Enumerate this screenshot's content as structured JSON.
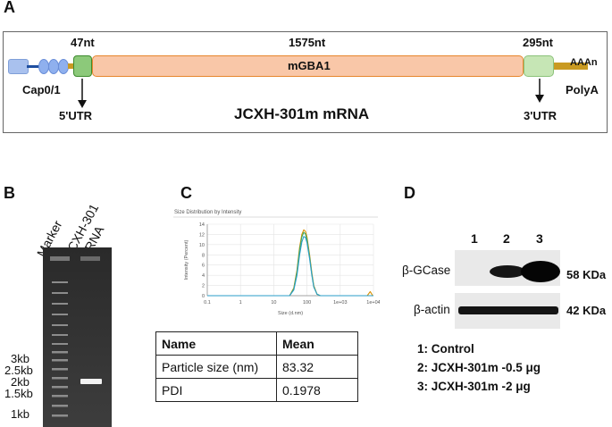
{
  "panelA": {
    "letter": "A",
    "label_47": "47nt",
    "label_1575": "1575nt",
    "label_295": "295nt",
    "gene": "mGBA1",
    "polyA_tail": "AAAn",
    "cap": "Cap0/1",
    "utr5": "5'UTR",
    "utr3": "3'UTR",
    "polyA": "PolyA",
    "mrna_title": "JCXH-301m mRNA"
  },
  "panelB": {
    "letter": "B",
    "lane_marker": "Marker",
    "lane_sample_1": "JCXH-301",
    "lane_sample_2": "mRNA",
    "sizes": [
      "3kb",
      "2.5kb",
      "2kb",
      "1.5kb",
      "1kb"
    ]
  },
  "panelC": {
    "letter": "C",
    "chart_title": "Size Distribution by Intensity",
    "ylabel": "Intensity (Percent)",
    "xlabel": "Size (d.nm)",
    "table": {
      "headers": [
        "Name",
        "Mean"
      ],
      "rows": [
        [
          "Particle size (nm)",
          "83.32"
        ],
        [
          "PDI",
          "0.1978"
        ]
      ]
    }
  },
  "chart_data": {
    "type": "line",
    "title": "Size Distribution by Intensity",
    "xlabel": "Size (d.nm)",
    "ylabel": "Intensity (Percent)",
    "x_scale": "log",
    "xlim": [
      0.1,
      10000
    ],
    "ylim": [
      0,
      14
    ],
    "x_tick_labels": [
      "0.1",
      "1",
      "10",
      "100",
      "1e+03",
      "1e+04"
    ],
    "y_tick_labels": [
      "0",
      "2",
      "4",
      "6",
      "8",
      "10",
      "12",
      "14"
    ],
    "grid": true,
    "series": [
      {
        "color": "#d99000",
        "x": [
          30,
          40,
          50,
          60,
          70,
          80,
          90,
          100,
          120,
          140,
          160,
          200,
          250,
          6500,
          8000,
          9500
        ],
        "y": [
          0,
          1.5,
          5,
          9.5,
          12,
          12.9,
          12.6,
          11.5,
          8,
          4.5,
          2,
          0.3,
          0,
          0,
          0.8,
          0
        ]
      },
      {
        "color": "#3aa860",
        "x": [
          30,
          40,
          50,
          60,
          70,
          80,
          90,
          100,
          120,
          140,
          160,
          200,
          250
        ],
        "y": [
          0,
          1.3,
          4.6,
          9,
          11.5,
          12.4,
          12.1,
          11,
          7.6,
          4.2,
          1.8,
          0.3,
          0
        ]
      },
      {
        "color": "#2a9ec8",
        "x": [
          30,
          40,
          50,
          60,
          70,
          80,
          90,
          100,
          120,
          140,
          160,
          200,
          250
        ],
        "y": [
          0,
          1.1,
          4,
          8,
          10.5,
          11.6,
          11.4,
          10.4,
          7.2,
          4.0,
          1.7,
          0.3,
          0
        ]
      }
    ]
  },
  "panelD": {
    "letter": "D",
    "lanes": [
      "1",
      "2",
      "3"
    ],
    "gcase_label": "β-GCase",
    "actin_label": "β-actin",
    "kda_58": "58 KDa",
    "kda_42": "42 KDa",
    "legend": [
      "1: Control",
      "2: JCXH-301m -0.5 μg",
      "3: JCXH-301m -2 μg"
    ]
  }
}
